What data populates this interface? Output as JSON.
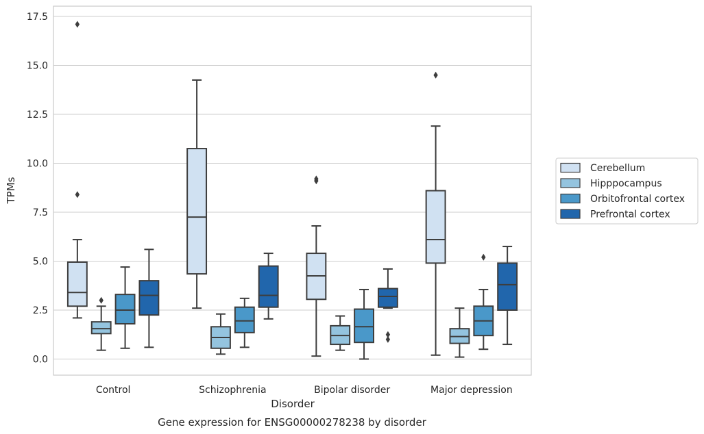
{
  "chart_data": {
    "type": "box",
    "title": "",
    "caption": "Gene expression for ENSG00000278238 by disorder",
    "xlabel": "Disorder",
    "ylabel": "TPMs",
    "ylim": [
      -0.85,
      18.0
    ],
    "yticks": [
      "0.0",
      "2.5",
      "5.0",
      "7.5",
      "10.0",
      "12.5",
      "15.0",
      "17.5"
    ],
    "ytick_values": [
      0,
      2.5,
      5.0,
      7.5,
      10.0,
      12.5,
      15.0,
      17.5
    ],
    "grid": "horizontal",
    "legend_position": "right",
    "categories": [
      "Control",
      "Schizophrenia",
      "Bipolar disorder",
      "Major depression"
    ],
    "series": [
      {
        "name": "Cerebellum",
        "color": "#d0e1f2",
        "boxes": [
          {
            "whislo": 2.1,
            "q1": 2.7,
            "med": 3.4,
            "q3": 4.95,
            "whishi": 6.1,
            "fliers": [
              8.4,
              17.1
            ]
          },
          {
            "whislo": 2.6,
            "q1": 4.35,
            "med": 7.25,
            "q3": 10.75,
            "whishi": 14.25,
            "fliers": []
          },
          {
            "whislo": 0.15,
            "q1": 3.05,
            "med": 4.25,
            "q3": 5.4,
            "whishi": 6.8,
            "fliers": [
              9.1,
              9.2
            ]
          },
          {
            "whislo": 0.2,
            "q1": 4.9,
            "med": 6.1,
            "q3": 8.6,
            "whishi": 11.9,
            "fliers": [
              14.5
            ]
          }
        ]
      },
      {
        "name": "Hipppocampus",
        "color": "#94c4df",
        "boxes": [
          {
            "whislo": 0.45,
            "q1": 1.3,
            "med": 1.55,
            "q3": 1.9,
            "whishi": 2.7,
            "fliers": [
              3.0
            ]
          },
          {
            "whislo": 0.25,
            "q1": 0.55,
            "med": 1.1,
            "q3": 1.65,
            "whishi": 2.3,
            "fliers": []
          },
          {
            "whislo": 0.45,
            "q1": 0.75,
            "med": 1.2,
            "q3": 1.7,
            "whishi": 2.2,
            "fliers": []
          },
          {
            "whislo": 0.1,
            "q1": 0.8,
            "med": 1.15,
            "q3": 1.55,
            "whishi": 2.6,
            "fliers": []
          }
        ]
      },
      {
        "name": "Orbitofrontal cortex",
        "color": "#4a98c9",
        "boxes": [
          {
            "whislo": 0.55,
            "q1": 1.8,
            "med": 2.5,
            "q3": 3.3,
            "whishi": 4.7,
            "fliers": []
          },
          {
            "whislo": 0.6,
            "q1": 1.35,
            "med": 1.95,
            "q3": 2.65,
            "whishi": 3.1,
            "fliers": []
          },
          {
            "whislo": 0.0,
            "q1": 0.85,
            "med": 1.65,
            "q3": 2.55,
            "whishi": 3.55,
            "fliers": []
          },
          {
            "whislo": 0.5,
            "q1": 1.2,
            "med": 1.95,
            "q3": 2.7,
            "whishi": 3.55,
            "fliers": [
              5.2
            ]
          }
        ]
      },
      {
        "name": "Prefrontal cortex",
        "color": "#2166ac",
        "boxes": [
          {
            "whislo": 0.6,
            "q1": 2.25,
            "med": 3.25,
            "q3": 4.0,
            "whishi": 5.6,
            "fliers": []
          },
          {
            "whislo": 2.05,
            "q1": 2.65,
            "med": 3.25,
            "q3": 4.75,
            "whishi": 5.4,
            "fliers": []
          },
          {
            "whislo": 2.6,
            "q1": 2.65,
            "med": 3.2,
            "q3": 3.6,
            "whishi": 4.6,
            "fliers": [
              1.0,
              1.25
            ]
          },
          {
            "whislo": 0.75,
            "q1": 2.5,
            "med": 3.8,
            "q3": 4.9,
            "whishi": 5.75,
            "fliers": []
          }
        ]
      }
    ]
  }
}
